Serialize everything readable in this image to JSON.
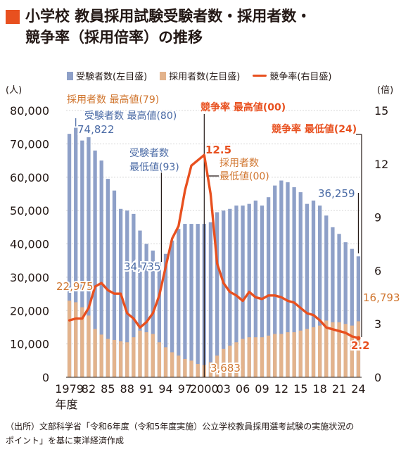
{
  "title": {
    "line1": "小学校 教員採用試験受験者数・採用者数・",
    "line2": "競争率（採用倍率）の推移"
  },
  "colors": {
    "applicants": "#8ea0c8",
    "hires": "#e3b38c",
    "ratio": "#e8501f",
    "applicants_label": "#4a6aa5",
    "hires_label": "#d0752e",
    "ratio_label": "#e8501f",
    "accent": "#e8501f"
  },
  "chart_data": {
    "type": "bar",
    "legend": [
      {
        "label": "受験者数(左目盛)",
        "kind": "bar",
        "color": "#8ea0c8"
      },
      {
        "label": "採用者数(左目盛)",
        "kind": "bar",
        "color": "#e3b38c"
      },
      {
        "label": "競争率(右目盛)",
        "kind": "line",
        "color": "#e8501f"
      }
    ],
    "y_left_unit": "(人)",
    "y_right_unit": "(倍)",
    "y_left_ticks": [
      "0",
      "10,000",
      "20,000",
      "30,000",
      "40,000",
      "50,000",
      "60,000",
      "70,000",
      "80,000"
    ],
    "y_right_ticks": [
      "0",
      "3",
      "6",
      "9",
      "12",
      "15"
    ],
    "ylim_left": [
      0,
      80000
    ],
    "ylim_right": [
      0,
      15
    ],
    "x_tick_labels": [
      "1979",
      "82",
      "85",
      "88",
      "91",
      "94",
      "97",
      "2000",
      "03",
      "06",
      "09",
      "12",
      "15",
      "18",
      "21",
      "24"
    ],
    "x_unit_label": "年度",
    "years": [
      1979,
      1980,
      1981,
      1982,
      1983,
      1984,
      1985,
      1986,
      1987,
      1988,
      1989,
      1990,
      1991,
      1992,
      1993,
      1994,
      1995,
      1996,
      1997,
      1998,
      1999,
      2000,
      2001,
      2002,
      2003,
      2004,
      2005,
      2006,
      2007,
      2008,
      2009,
      2010,
      2011,
      2012,
      2013,
      2014,
      2015,
      2016,
      2017,
      2018,
      2019,
      2020,
      2021,
      2022,
      2023,
      2024
    ],
    "series": [
      {
        "name": "受験者数",
        "axis": "left",
        "type": "bar",
        "values": [
          73000,
          74822,
          71000,
          72000,
          68000,
          65000,
          59500,
          56000,
          50500,
          50000,
          49000,
          44000,
          40000,
          38000,
          34735,
          37000,
          41000,
          44500,
          46000,
          46000,
          46000,
          46000,
          46500,
          49500,
          50000,
          50500,
          51500,
          51500,
          52000,
          53000,
          51500,
          54000,
          57500,
          59000,
          58500,
          57000,
          55500,
          52000,
          53000,
          51500,
          48500,
          45000,
          43000,
          40500,
          38500,
          36259
        ]
      },
      {
        "name": "採用者数",
        "axis": "left",
        "type": "bar",
        "values": [
          22975,
          22500,
          21000,
          18500,
          14500,
          12800,
          11500,
          11200,
          10800,
          10500,
          12000,
          14000,
          13500,
          13000,
          10500,
          9000,
          7500,
          6500,
          5500,
          5000,
          4000,
          3683,
          4500,
          6500,
          8500,
          9500,
          10500,
          11500,
          12000,
          12000,
          12000,
          12500,
          13000,
          13000,
          13500,
          13500,
          14000,
          14500,
          15000,
          15500,
          17000,
          16500,
          16500,
          16000,
          15500,
          16793
        ]
      },
      {
        "name": "競争率",
        "axis": "right",
        "type": "line",
        "values": [
          3.2,
          3.3,
          3.3,
          3.9,
          5.1,
          5.3,
          4.9,
          4.7,
          4.7,
          3.6,
          3.3,
          2.8,
          3.1,
          3.6,
          4.6,
          6.2,
          7.8,
          8.5,
          10.5,
          11.9,
          12.2,
          12.5,
          10.3,
          6.4,
          5.3,
          4.8,
          4.6,
          4.3,
          4.8,
          4.5,
          4.4,
          4.6,
          4.6,
          4.5,
          4.3,
          4.2,
          3.9,
          3.6,
          3.5,
          3.2,
          2.8,
          2.7,
          2.6,
          2.5,
          2.3,
          2.2
        ]
      }
    ],
    "annotations": [
      {
        "text": "採用者数 最高値(79)",
        "kind": "hires"
      },
      {
        "text": "受験者数 最高値(80)",
        "kind": "applicants"
      },
      {
        "text": "74,822",
        "kind": "applicants"
      },
      {
        "text": "22,975",
        "kind": "hires"
      },
      {
        "text": "受験者数",
        "kind": "applicants"
      },
      {
        "text": "最低値(93)",
        "kind": "applicants"
      },
      {
        "text": "34,735",
        "kind": "applicants"
      },
      {
        "text": "競争率 最高値(00)",
        "kind": "ratio"
      },
      {
        "text": "12.5",
        "kind": "ratio"
      },
      {
        "text": "採用者数",
        "kind": "hires"
      },
      {
        "text": "最低値(00)",
        "kind": "hires"
      },
      {
        "text": "3,683",
        "kind": "hires"
      },
      {
        "text": "競争率 最低値(24)",
        "kind": "ratio"
      },
      {
        "text": "36,259",
        "kind": "applicants"
      },
      {
        "text": "16,793",
        "kind": "hires"
      },
      {
        "text": "2.2",
        "kind": "ratio"
      }
    ]
  },
  "source": {
    "line1": "（出所）文部科学省「令和6年度（令和5年度実施）公立学校教員採用選考試験の実施状況の",
    "line2": "ポイント」を基に東洋経済作成"
  }
}
